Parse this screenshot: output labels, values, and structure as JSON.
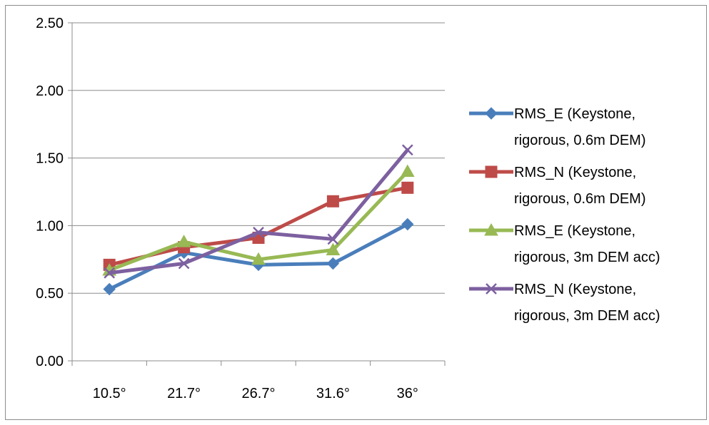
{
  "chart_data": {
    "type": "line",
    "categories": [
      "10.5°",
      "21.7°",
      "26.7°",
      "31.6°",
      "36°"
    ],
    "ylim": [
      0,
      2.5
    ],
    "yticks": [
      "0.00",
      "0.50",
      "1.00",
      "1.50",
      "2.00",
      "2.50"
    ],
    "ytick_values": [
      0,
      0.5,
      1.0,
      1.5,
      2.0,
      2.5
    ],
    "grid": true,
    "legend_position": "right",
    "series": [
      {
        "name": "RMS_E (Keystone, rigorous, 0.6m DEM)",
        "legend_lines": [
          "RMS_E (Keystone,",
          "rigorous, 0.6m DEM)"
        ],
        "color": "#4a7ebb",
        "marker": "diamond",
        "values": [
          0.53,
          0.8,
          0.71,
          0.72,
          1.01
        ]
      },
      {
        "name": "RMS_N (Keystone, rigorous, 0.6m DEM)",
        "legend_lines": [
          "RMS_N (Keystone,",
          "rigorous, 0.6m DEM)"
        ],
        "color": "#be4b48",
        "marker": "square",
        "values": [
          0.71,
          0.84,
          0.91,
          1.18,
          1.28
        ]
      },
      {
        "name": "RMS_E (Keystone, rigorous, 3m DEM acc)",
        "legend_lines": [
          "RMS_E (Keystone,",
          "rigorous, 3m DEM acc)"
        ],
        "color": "#98b954",
        "marker": "triangle",
        "values": [
          0.67,
          0.88,
          0.75,
          0.82,
          1.4
        ]
      },
      {
        "name": "RMS_N (Keystone, rigorous, 3m DEM acc)",
        "legend_lines": [
          "RMS_N (Keystone,",
          "rigorous, 3m DEM acc)"
        ],
        "color": "#7d60a0",
        "marker": "x",
        "values": [
          0.65,
          0.72,
          0.95,
          0.9,
          1.56
        ]
      }
    ]
  }
}
